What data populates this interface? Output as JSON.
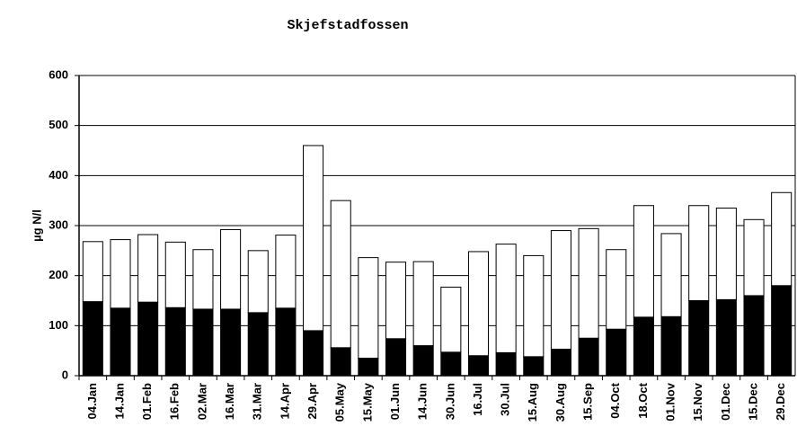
{
  "chart_data": {
    "type": "stacked_bar",
    "title": "Skjefstadfossen",
    "y_label": "µg N/l",
    "categories": [
      "04.Jan",
      "14.Jan",
      "01.Feb",
      "16.Feb",
      "02.Mar",
      "16.Mar",
      "31.Mar",
      "14.Apr",
      "29.Apr",
      "05.May",
      "15.May",
      "01.Jun",
      "14.Jun",
      "30.Jun",
      "16.Jul",
      "30.Jul",
      "15.Aug",
      "30.Aug",
      "15.Sep",
      "04.Oct",
      "18.Oct",
      "01.Nov",
      "15.Nov",
      "01.Dec",
      "15.Dec",
      "29.Dec"
    ],
    "series": [
      {
        "color": "#000000",
        "values": [
          148,
          135,
          147,
          136,
          133,
          133,
          126,
          135,
          90,
          56,
          35,
          74,
          60,
          47,
          40,
          46,
          38,
          53,
          75,
          93,
          117,
          118,
          150,
          152,
          160,
          180
        ]
      },
      {
        "color": "#ffffff",
        "values": [
          120,
          137,
          135,
          131,
          119,
          159,
          124,
          146,
          370,
          294,
          201,
          153,
          168,
          130,
          208,
          217,
          202,
          237,
          219,
          159,
          223,
          166,
          190,
          183,
          152,
          186
        ]
      }
    ],
    "ylim": [
      0,
      600
    ],
    "yticks": [
      0,
      100,
      200,
      300,
      400,
      500,
      600
    ],
    "grid": true
  }
}
